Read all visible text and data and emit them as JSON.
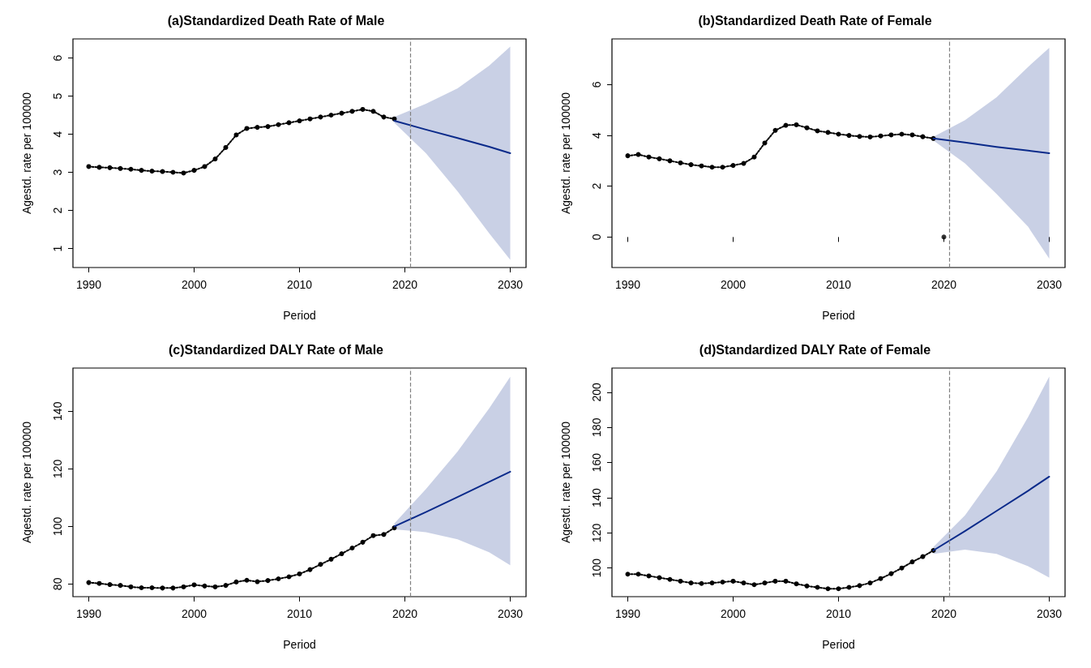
{
  "chart_data": [
    {
      "type": "line",
      "title": "(a)Standardized Death Rate of Male",
      "xlabel": "Period",
      "ylabel": "Agestd. rate per 100000",
      "xlim": [
        1988.5,
        2031.5
      ],
      "xticks": [
        1990,
        2000,
        2010,
        2020,
        2030
      ],
      "ylim": [
        0.5,
        6.5
      ],
      "yticks": [
        1,
        2,
        3,
        4,
        5,
        6
      ],
      "ref_lines": [
        {
          "axis": "x",
          "value": 2020.5,
          "label": null,
          "color": "#808080",
          "line_style": "dashed"
        }
      ],
      "series": [
        {
          "color": "#000000",
          "line_style": "dotted",
          "marker": "circle",
          "x": [
            1990,
            1991,
            1992,
            1993,
            1994,
            1995,
            1996,
            1997,
            1998,
            1999,
            2000,
            2001,
            2002,
            2003,
            2004,
            2005,
            2006,
            2007,
            2008,
            2009,
            2010,
            2011,
            2012,
            2013,
            2014,
            2015,
            2016,
            2017,
            2018,
            2019
          ],
          "values": [
            3.15,
            3.13,
            3.12,
            3.1,
            3.08,
            3.05,
            3.03,
            3.02,
            3.0,
            2.98,
            3.05,
            3.15,
            3.35,
            3.65,
            3.98,
            4.15,
            4.18,
            4.2,
            4.25,
            4.3,
            4.35,
            4.4,
            4.45,
            4.5,
            4.55,
            4.6,
            4.65,
            4.6,
            4.45,
            4.4
          ]
        },
        {
          "color": "#0a2a8a",
          "line_style": "solid",
          "x": [
            2019,
            2022,
            2025,
            2028,
            2030
          ],
          "values": [
            4.35,
            4.12,
            3.9,
            3.67,
            3.5
          ],
          "lower": [
            4.3,
            3.5,
            2.5,
            1.4,
            0.7
          ],
          "upper": [
            4.45,
            4.8,
            5.2,
            5.8,
            6.3
          ]
        }
      ]
    },
    {
      "type": "line",
      "title": "(b)Standardized Death Rate of Female",
      "xlabel": "Period",
      "ylabel": "Agestd. rate per 100000",
      "xlim": [
        1988.5,
        2031.5
      ],
      "xticks": [
        1990,
        2000,
        2010,
        2020,
        2030
      ],
      "ylim": [
        -1.2,
        7.8
      ],
      "yticks": [
        0,
        2,
        4,
        6
      ],
      "ref_lines": [
        {
          "axis": "x",
          "value": 2020.5,
          "label": null,
          "color": "#808080",
          "line_style": "dashed"
        }
      ],
      "series": [
        {
          "color": "#000000",
          "line_style": "dotted",
          "marker": "circle",
          "x": [
            1990,
            1991,
            1992,
            1993,
            1994,
            1995,
            1996,
            1997,
            1998,
            1999,
            2000,
            2001,
            2002,
            2003,
            2004,
            2005,
            2006,
            2007,
            2008,
            2009,
            2010,
            2011,
            2012,
            2013,
            2014,
            2015,
            2016,
            2017,
            2018,
            2019
          ],
          "values": [
            3.2,
            3.25,
            3.15,
            3.08,
            3.0,
            2.92,
            2.85,
            2.8,
            2.75,
            2.75,
            2.82,
            2.9,
            3.15,
            3.7,
            4.2,
            4.4,
            4.42,
            4.3,
            4.18,
            4.12,
            4.05,
            4.0,
            3.96,
            3.94,
            3.98,
            4.02,
            4.05,
            4.02,
            3.95,
            3.88
          ]
        },
        {
          "color": "#0a2a8a",
          "line_style": "solid",
          "x": [
            2019,
            2022,
            2025,
            2028,
            2030
          ],
          "values": [
            3.88,
            3.72,
            3.55,
            3.4,
            3.3
          ],
          "lower": [
            3.8,
            2.9,
            1.7,
            0.4,
            -0.85
          ],
          "upper": [
            3.95,
            4.6,
            5.5,
            6.7,
            7.45
          ]
        },
        {
          "type": "scatter",
          "color": "#000000",
          "marker": "circle",
          "x": [
            2020
          ],
          "values": [
            0
          ]
        }
      ]
    },
    {
      "type": "line",
      "title": "(c)Standardized DALY Rate of Male",
      "xlabel": "Period",
      "ylabel": "Agestd. rate per 100000",
      "xlim": [
        1988.5,
        2031.5
      ],
      "xticks": [
        1990,
        2000,
        2010,
        2020,
        2030
      ],
      "ylim": [
        75.6,
        155
      ],
      "yticks": [
        80,
        100,
        120,
        140
      ],
      "ref_lines": [
        {
          "axis": "x",
          "value": 2020.5,
          "label": null,
          "color": "#808080",
          "line_style": "dashed"
        }
      ],
      "series": [
        {
          "color": "#000000",
          "line_style": "dotted",
          "marker": "circle",
          "x": [
            1990,
            1991,
            1992,
            1993,
            1994,
            1995,
            1996,
            1997,
            1998,
            1999,
            2000,
            2001,
            2002,
            2003,
            2004,
            2005,
            2006,
            2007,
            2008,
            2009,
            2010,
            2011,
            2012,
            2013,
            2014,
            2015,
            2016,
            2017,
            2018,
            2019
          ],
          "values": [
            80.5,
            80.2,
            79.8,
            79.5,
            79,
            78.7,
            78.7,
            78.6,
            78.6,
            79,
            79.7,
            79.3,
            79,
            79.5,
            80.7,
            81.3,
            80.8,
            81.2,
            81.8,
            82.5,
            83.5,
            85,
            86.8,
            88.6,
            90.5,
            92.5,
            94.5,
            96.8,
            97.2,
            99.5
          ]
        },
        {
          "color": "#0a2a8a",
          "line_style": "solid",
          "x": [
            2019,
            2022,
            2025,
            2028,
            2030
          ],
          "values": [
            100,
            105,
            110.2,
            115.5,
            119
          ],
          "lower": [
            99,
            98,
            95.5,
            91,
            86.5
          ],
          "upper": [
            101,
            113,
            126,
            141,
            152
          ]
        }
      ]
    },
    {
      "type": "line",
      "title": "(d)Standardized DALY Rate of Female",
      "xlabel": "Period",
      "ylabel": "Agestd. rate per 100000",
      "xlim": [
        1988.5,
        2031.5
      ],
      "xticks": [
        1990,
        2000,
        2010,
        2020,
        2030
      ],
      "ylim": [
        83.7,
        213.8
      ],
      "yticks": [
        100,
        120,
        140,
        160,
        180,
        200
      ],
      "ref_lines": [
        {
          "axis": "x",
          "value": 2020.5,
          "label": null,
          "color": "#808080",
          "line_style": "dashed"
        }
      ],
      "series": [
        {
          "color": "#000000",
          "line_style": "dotted",
          "marker": "circle",
          "x": [
            1990,
            1991,
            1992,
            1993,
            1994,
            1995,
            1996,
            1997,
            1998,
            1999,
            2000,
            2001,
            2002,
            2003,
            2004,
            2005,
            2006,
            2007,
            2008,
            2009,
            2010,
            2011,
            2012,
            2013,
            2014,
            2015,
            2016,
            2017,
            2018,
            2019
          ],
          "values": [
            96.5,
            96.5,
            95.5,
            94.5,
            93.5,
            92.5,
            91.5,
            91.2,
            91.5,
            92,
            92.5,
            91.5,
            90.5,
            91.5,
            92.5,
            92.5,
            91,
            89.8,
            89,
            88.2,
            88.2,
            89,
            90,
            91.5,
            94,
            96.8,
            100,
            103.5,
            106.5,
            110
          ]
        },
        {
          "color": "#0a2a8a",
          "line_style": "solid",
          "x": [
            2019,
            2022,
            2025,
            2028,
            2030
          ],
          "values": [
            110,
            121,
            132.5,
            144,
            152
          ],
          "lower": [
            108,
            110.5,
            108,
            101,
            94.5
          ],
          "upper": [
            112,
            130,
            155,
            186,
            209
          ]
        }
      ]
    }
  ]
}
